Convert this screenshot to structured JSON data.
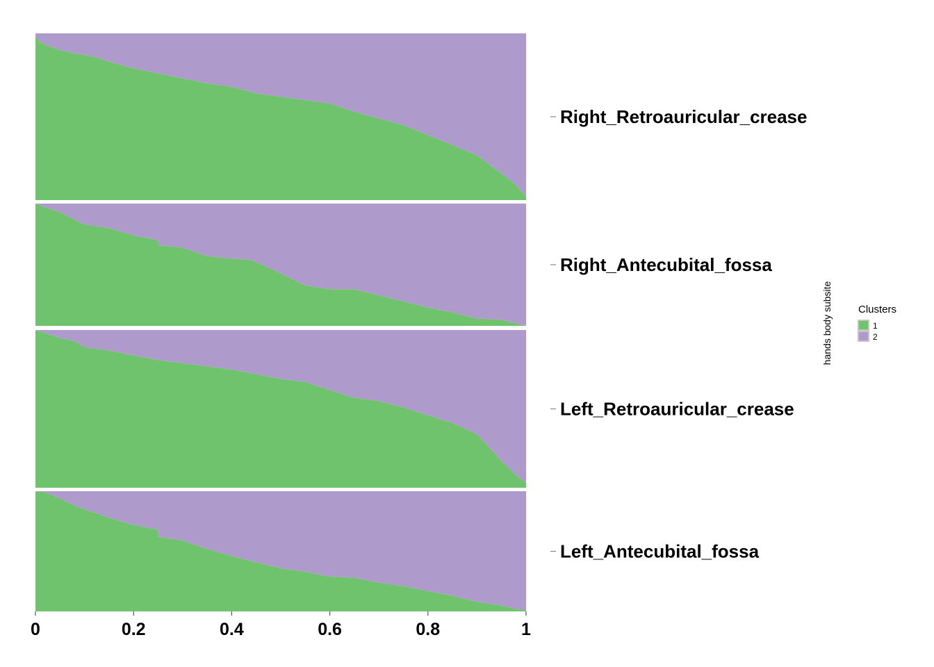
{
  "chart_data": {
    "type": "area",
    "orientation": "stacked-proportion-facets",
    "xlim": [
      0,
      1
    ],
    "x_ticks": [
      "0",
      "0.2",
      "0.4",
      "0.6",
      "0.8",
      "1"
    ],
    "x_tick_values": [
      0,
      0.2,
      0.4,
      0.6,
      0.8,
      1
    ],
    "ylabel": "hands body subsite",
    "legend": {
      "title": "Clusters",
      "placement": "right",
      "entries": [
        {
          "label": "1",
          "color": "#6fc36d"
        },
        {
          "label": "2",
          "color": "#af9bcb"
        }
      ]
    },
    "facets": [
      {
        "name": "Right_Retroauricular_crease",
        "series": [
          {
            "name": "1",
            "color": "#6fc36d",
            "x": [
              0,
              0.01,
              0.02,
              0.05,
              0.08,
              0.1,
              0.12,
              0.15,
              0.2,
              0.25,
              0.3,
              0.35,
              0.4,
              0.45,
              0.5,
              0.55,
              0.6,
              0.65,
              0.7,
              0.75,
              0.8,
              0.85,
              0.9,
              0.95,
              0.98,
              1
            ],
            "values": [
              0.98,
              0.95,
              0.93,
              0.9,
              0.88,
              0.87,
              0.86,
              0.83,
              0.79,
              0.76,
              0.73,
              0.7,
              0.68,
              0.64,
              0.62,
              0.6,
              0.58,
              0.53,
              0.49,
              0.45,
              0.39,
              0.33,
              0.27,
              0.16,
              0.09,
              0.02
            ]
          },
          {
            "name": "2",
            "color": "#af9bcb",
            "x": [
              0,
              0.01,
              0.02,
              0.05,
              0.08,
              0.1,
              0.12,
              0.15,
              0.2,
              0.25,
              0.3,
              0.35,
              0.4,
              0.45,
              0.5,
              0.55,
              0.6,
              0.65,
              0.7,
              0.75,
              0.8,
              0.85,
              0.9,
              0.95,
              0.98,
              1
            ],
            "values": [
              0.02,
              0.05,
              0.07,
              0.1,
              0.12,
              0.13,
              0.14,
              0.17,
              0.21,
              0.24,
              0.27,
              0.3,
              0.32,
              0.36,
              0.38,
              0.4,
              0.42,
              0.47,
              0.51,
              0.55,
              0.61,
              0.67,
              0.73,
              0.84,
              0.91,
              0.98
            ]
          }
        ]
      },
      {
        "name": "Right_Antecubital_fossa",
        "series": [
          {
            "name": "1",
            "color": "#6fc36d",
            "x": [
              0,
              0.02,
              0.05,
              0.08,
              0.1,
              0.15,
              0.2,
              0.25,
              0.251,
              0.3,
              0.35,
              0.4,
              0.44,
              0.5,
              0.55,
              0.6,
              0.65,
              0.7,
              0.75,
              0.8,
              0.85,
              0.9,
              0.95,
              0.98,
              1
            ],
            "values": [
              1.0,
              0.97,
              0.93,
              0.87,
              0.83,
              0.8,
              0.74,
              0.7,
              0.66,
              0.64,
              0.57,
              0.55,
              0.54,
              0.43,
              0.33,
              0.3,
              0.3,
              0.25,
              0.2,
              0.15,
              0.11,
              0.06,
              0.05,
              0.02,
              0.0
            ]
          },
          {
            "name": "2",
            "color": "#af9bcb",
            "x": [
              0,
              0.02,
              0.05,
              0.08,
              0.1,
              0.15,
              0.2,
              0.25,
              0.251,
              0.3,
              0.35,
              0.4,
              0.44,
              0.5,
              0.55,
              0.6,
              0.65,
              0.7,
              0.75,
              0.8,
              0.85,
              0.9,
              0.95,
              0.98,
              1
            ],
            "values": [
              0.0,
              0.03,
              0.07,
              0.13,
              0.17,
              0.2,
              0.26,
              0.3,
              0.34,
              0.36,
              0.43,
              0.45,
              0.46,
              0.57,
              0.67,
              0.7,
              0.7,
              0.75,
              0.8,
              0.85,
              0.89,
              0.94,
              0.95,
              0.98,
              1.0
            ]
          }
        ]
      },
      {
        "name": "Left_Retroauricular_crease",
        "series": [
          {
            "name": "1",
            "color": "#6fc36d",
            "x": [
              0,
              0.02,
              0.05,
              0.08,
              0.1,
              0.15,
              0.2,
              0.25,
              0.3,
              0.35,
              0.4,
              0.45,
              0.5,
              0.55,
              0.6,
              0.65,
              0.7,
              0.75,
              0.8,
              0.85,
              0.9,
              0.95,
              0.98,
              1
            ],
            "values": [
              1.0,
              0.98,
              0.95,
              0.93,
              0.89,
              0.87,
              0.84,
              0.81,
              0.79,
              0.77,
              0.75,
              0.72,
              0.69,
              0.67,
              0.62,
              0.57,
              0.55,
              0.51,
              0.46,
              0.41,
              0.34,
              0.17,
              0.08,
              0.03
            ]
          },
          {
            "name": "2",
            "color": "#af9bcb",
            "x": [
              0,
              0.02,
              0.05,
              0.08,
              0.1,
              0.15,
              0.2,
              0.25,
              0.3,
              0.35,
              0.4,
              0.45,
              0.5,
              0.55,
              0.6,
              0.65,
              0.7,
              0.75,
              0.8,
              0.85,
              0.9,
              0.95,
              0.98,
              1
            ],
            "values": [
              0.0,
              0.02,
              0.05,
              0.07,
              0.11,
              0.13,
              0.16,
              0.19,
              0.21,
              0.23,
              0.25,
              0.28,
              0.31,
              0.33,
              0.38,
              0.43,
              0.45,
              0.49,
              0.54,
              0.59,
              0.66,
              0.83,
              0.92,
              0.97
            ]
          }
        ]
      },
      {
        "name": "Left_Antecubital_fossa",
        "series": [
          {
            "name": "1",
            "color": "#6fc36d",
            "x": [
              0,
              0.02,
              0.05,
              0.08,
              0.1,
              0.15,
              0.2,
              0.25,
              0.251,
              0.3,
              0.35,
              0.4,
              0.45,
              0.5,
              0.55,
              0.6,
              0.65,
              0.7,
              0.75,
              0.8,
              0.85,
              0.9,
              0.95,
              0.98,
              1
            ],
            "values": [
              1.0,
              0.99,
              0.94,
              0.88,
              0.85,
              0.78,
              0.72,
              0.68,
              0.62,
              0.59,
              0.52,
              0.46,
              0.41,
              0.36,
              0.33,
              0.29,
              0.28,
              0.24,
              0.21,
              0.17,
              0.13,
              0.08,
              0.05,
              0.02,
              0.01
            ]
          },
          {
            "name": "2",
            "color": "#af9bcb",
            "x": [
              0,
              0.02,
              0.05,
              0.08,
              0.1,
              0.15,
              0.2,
              0.25,
              0.251,
              0.3,
              0.35,
              0.4,
              0.45,
              0.5,
              0.55,
              0.6,
              0.65,
              0.7,
              0.75,
              0.8,
              0.85,
              0.9,
              0.95,
              0.98,
              1
            ],
            "values": [
              0.0,
              0.01,
              0.06,
              0.12,
              0.15,
              0.22,
              0.28,
              0.32,
              0.38,
              0.41,
              0.48,
              0.54,
              0.59,
              0.64,
              0.67,
              0.71,
              0.72,
              0.76,
              0.79,
              0.83,
              0.87,
              0.92,
              0.95,
              0.98,
              0.99
            ]
          }
        ]
      }
    ]
  }
}
